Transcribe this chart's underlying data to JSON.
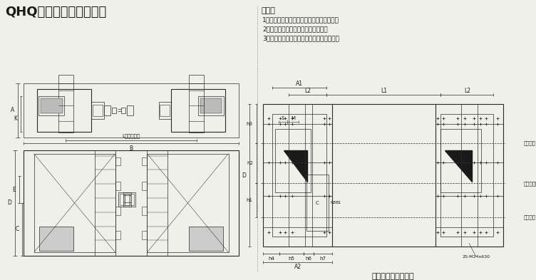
{
  "title": "QHQ型弧门卷扬式启闭机",
  "bg_color": "#f0f0eb",
  "text_color": "#1a1a1a",
  "description_title": "说明：",
  "description_lines": [
    "1、主要用于水利水电工程中启闭弧型闸门。",
    "2、启闭阀门时，水流平顺，震动小。",
    "3、卷扬机支撑形式为两支点和三支点两种。"
  ],
  "bottom_label": "基　础　布　置　图"
}
